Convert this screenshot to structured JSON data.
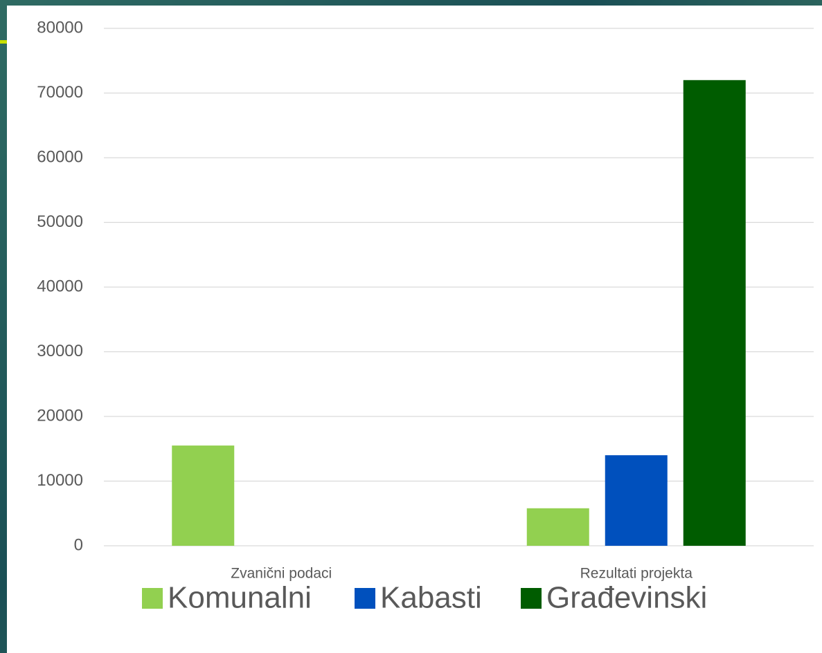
{
  "chart_data": {
    "type": "bar",
    "categories": [
      "Zvanični podaci",
      "Rezultati projekta"
    ],
    "series": [
      {
        "name": "Komunalni",
        "color": "#92d050",
        "values": [
          15500,
          5800
        ]
      },
      {
        "name": "Kabasti",
        "color": "#0050bd",
        "values": [
          null,
          14000
        ]
      },
      {
        "name": "Građevinski",
        "color": "#005c00",
        "values": [
          null,
          72000
        ]
      }
    ],
    "ylim": [
      0,
      80000
    ],
    "yticks": [
      0,
      10000,
      20000,
      30000,
      40000,
      50000,
      60000,
      70000,
      80000
    ],
    "grid": true,
    "legend": "bottom"
  }
}
